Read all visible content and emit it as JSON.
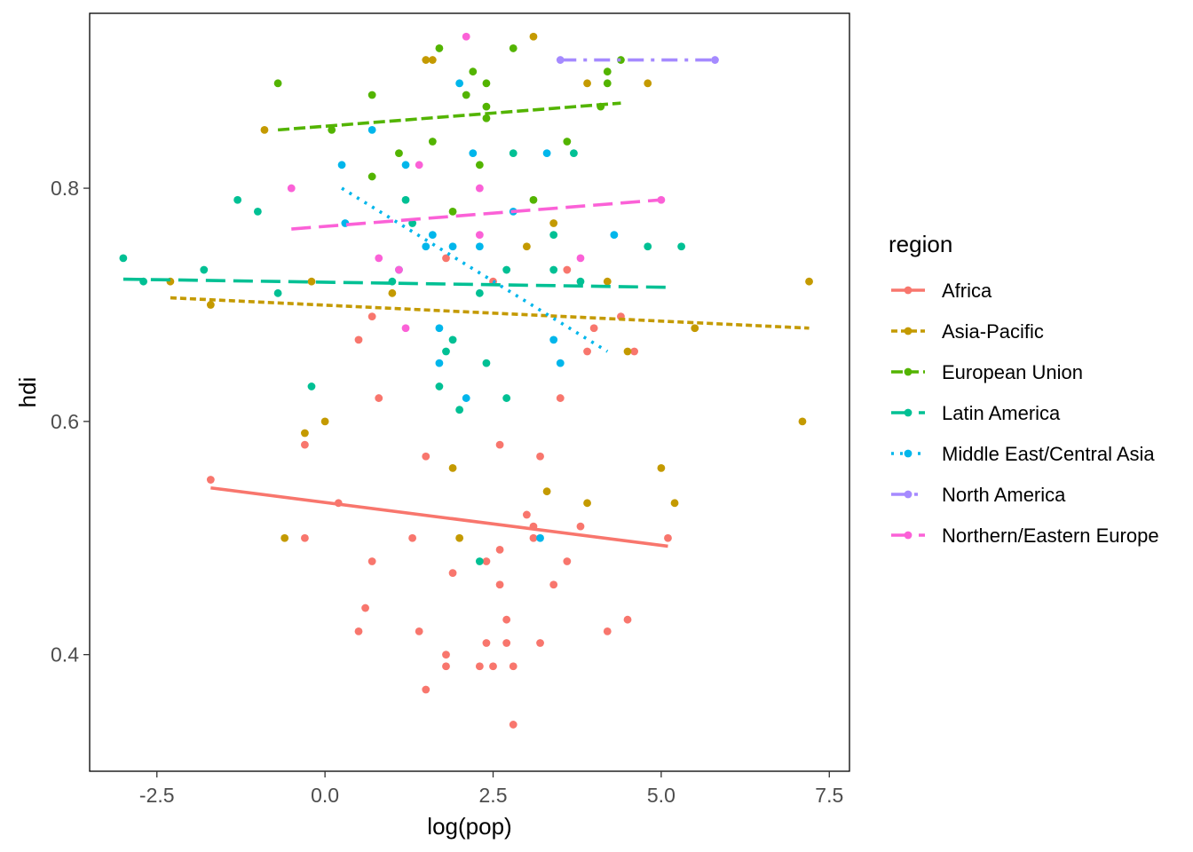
{
  "chart_data": {
    "type": "scatter",
    "xlabel": "log(pop)",
    "ylabel": "hdi",
    "xlim": [
      -3.5,
      7.8
    ],
    "ylim": [
      0.3,
      0.95
    ],
    "x_ticks": [
      -2.5,
      0.0,
      2.5,
      5.0,
      7.5
    ],
    "x_tick_labels": [
      "-2.5",
      "0.0",
      "2.5",
      "5.0",
      "7.5"
    ],
    "y_ticks": [
      0.4,
      0.6,
      0.8
    ],
    "y_tick_labels": [
      "0.4",
      "0.6",
      "0.8"
    ],
    "legend": {
      "title": "region",
      "position": "right"
    },
    "grid": false,
    "series": [
      {
        "name": "Africa",
        "color": "#F8766D",
        "dash": "solid",
        "trend": {
          "x": [
            -1.7,
            5.1
          ],
          "y": [
            0.543,
            0.493
          ]
        },
        "points": [
          [
            -1.7,
            0.55
          ],
          [
            0.2,
            0.53
          ],
          [
            -0.3,
            0.58
          ],
          [
            -0.3,
            0.5
          ],
          [
            0.5,
            0.67
          ],
          [
            0.7,
            0.69
          ],
          [
            0.8,
            0.62
          ],
          [
            0.5,
            0.42
          ],
          [
            0.6,
            0.44
          ],
          [
            0.7,
            0.48
          ],
          [
            1.3,
            0.5
          ],
          [
            1.4,
            0.42
          ],
          [
            1.5,
            0.57
          ],
          [
            1.5,
            0.37
          ],
          [
            1.8,
            0.74
          ],
          [
            1.8,
            0.4
          ],
          [
            1.8,
            0.39
          ],
          [
            1.9,
            0.47
          ],
          [
            2.3,
            0.39
          ],
          [
            2.4,
            0.48
          ],
          [
            2.4,
            0.41
          ],
          [
            2.5,
            0.72
          ],
          [
            2.5,
            0.39
          ],
          [
            2.6,
            0.58
          ],
          [
            2.6,
            0.49
          ],
          [
            2.6,
            0.46
          ],
          [
            2.7,
            0.41
          ],
          [
            2.7,
            0.43
          ],
          [
            2.8,
            0.39
          ],
          [
            2.8,
            0.34
          ],
          [
            3.0,
            0.52
          ],
          [
            3.1,
            0.51
          ],
          [
            3.1,
            0.5
          ],
          [
            3.2,
            0.57
          ],
          [
            3.2,
            0.41
          ],
          [
            3.4,
            0.46
          ],
          [
            3.5,
            0.62
          ],
          [
            3.6,
            0.48
          ],
          [
            3.6,
            0.73
          ],
          [
            3.8,
            0.51
          ],
          [
            3.9,
            0.66
          ],
          [
            4.0,
            0.68
          ],
          [
            4.2,
            0.42
          ],
          [
            4.4,
            0.69
          ],
          [
            4.5,
            0.43
          ],
          [
            4.6,
            0.66
          ],
          [
            5.1,
            0.5
          ]
        ]
      },
      {
        "name": "Asia-Pacific",
        "color": "#C49A00",
        "dash": "short",
        "trend": {
          "x": [
            -2.3,
            7.2
          ],
          "y": [
            0.706,
            0.68
          ]
        },
        "points": [
          [
            -2.3,
            0.72
          ],
          [
            -1.7,
            0.7
          ],
          [
            -0.9,
            0.85
          ],
          [
            -0.6,
            0.5
          ],
          [
            -0.3,
            0.59
          ],
          [
            -0.2,
            0.72
          ],
          [
            0.0,
            0.6
          ],
          [
            1.0,
            0.71
          ],
          [
            1.5,
            0.91
          ],
          [
            1.6,
            0.91
          ],
          [
            1.9,
            0.56
          ],
          [
            2.0,
            0.5
          ],
          [
            3.0,
            0.75
          ],
          [
            3.1,
            0.93
          ],
          [
            3.3,
            0.54
          ],
          [
            3.4,
            0.77
          ],
          [
            3.9,
            0.89
          ],
          [
            3.9,
            0.53
          ],
          [
            4.2,
            0.72
          ],
          [
            4.5,
            0.66
          ],
          [
            4.8,
            0.89
          ],
          [
            5.0,
            0.56
          ],
          [
            5.2,
            0.53
          ],
          [
            5.5,
            0.68
          ],
          [
            7.1,
            0.6
          ],
          [
            7.2,
            0.72
          ]
        ]
      },
      {
        "name": "European Union",
        "color": "#53B400",
        "dash": "medium",
        "trend": {
          "x": [
            -0.7,
            4.4
          ],
          "y": [
            0.85,
            0.873
          ]
        },
        "points": [
          [
            -0.7,
            0.89
          ],
          [
            0.1,
            0.85
          ],
          [
            0.7,
            0.88
          ],
          [
            0.7,
            0.81
          ],
          [
            1.1,
            0.83
          ],
          [
            1.6,
            0.84
          ],
          [
            1.7,
            0.92
          ],
          [
            1.9,
            0.78
          ],
          [
            2.1,
            0.88
          ],
          [
            2.2,
            0.9
          ],
          [
            2.3,
            0.82
          ],
          [
            2.4,
            0.87
          ],
          [
            2.4,
            0.86
          ],
          [
            2.4,
            0.89
          ],
          [
            2.8,
            0.92
          ],
          [
            3.1,
            0.79
          ],
          [
            3.6,
            0.84
          ],
          [
            4.1,
            0.87
          ],
          [
            4.2,
            0.89
          ],
          [
            4.2,
            0.9
          ],
          [
            4.4,
            0.91
          ]
        ]
      },
      {
        "name": "Latin America",
        "color": "#00C094",
        "dash": "long",
        "trend": {
          "x": [
            -3.0,
            5.1
          ],
          "y": [
            0.722,
            0.715
          ]
        },
        "points": [
          [
            -3.0,
            0.74
          ],
          [
            -2.7,
            0.72
          ],
          [
            -1.8,
            0.73
          ],
          [
            -1.3,
            0.79
          ],
          [
            -1.0,
            0.78
          ],
          [
            -0.7,
            0.71
          ],
          [
            -0.2,
            0.63
          ],
          [
            1.0,
            0.72
          ],
          [
            1.2,
            0.79
          ],
          [
            1.3,
            0.77
          ],
          [
            1.7,
            0.63
          ],
          [
            1.8,
            0.66
          ],
          [
            1.9,
            0.67
          ],
          [
            2.0,
            0.61
          ],
          [
            2.3,
            0.71
          ],
          [
            2.4,
            0.65
          ],
          [
            2.3,
            0.48
          ],
          [
            2.7,
            0.73
          ],
          [
            2.7,
            0.62
          ],
          [
            2.8,
            0.83
          ],
          [
            3.4,
            0.73
          ],
          [
            3.4,
            0.76
          ],
          [
            3.7,
            0.83
          ],
          [
            3.8,
            0.72
          ],
          [
            4.8,
            0.75
          ],
          [
            5.3,
            0.75
          ]
        ]
      },
      {
        "name": "Middle East/Central Asia",
        "color": "#00B6EB",
        "dash": "dotted",
        "trend": {
          "x": [
            0.25,
            4.2
          ],
          "y": [
            0.8,
            0.66
          ]
        },
        "points": [
          [
            0.25,
            0.82
          ],
          [
            0.3,
            0.77
          ],
          [
            0.7,
            0.85
          ],
          [
            1.1,
            0.73
          ],
          [
            1.2,
            0.82
          ],
          [
            1.5,
            0.75
          ],
          [
            1.6,
            0.76
          ],
          [
            1.7,
            0.68
          ],
          [
            1.7,
            0.65
          ],
          [
            1.9,
            0.75
          ],
          [
            2.0,
            0.89
          ],
          [
            2.1,
            0.62
          ],
          [
            2.2,
            0.83
          ],
          [
            2.3,
            0.75
          ],
          [
            2.8,
            0.78
          ],
          [
            3.2,
            0.5
          ],
          [
            3.3,
            0.83
          ],
          [
            3.4,
            0.67
          ],
          [
            3.5,
            0.65
          ],
          [
            4.3,
            0.76
          ]
        ]
      },
      {
        "name": "North America",
        "color": "#A58AFF",
        "dash": "dashdot",
        "trend": {
          "x": [
            3.5,
            5.8
          ],
          "y": [
            0.91,
            0.91
          ]
        },
        "points": [
          [
            3.5,
            0.91
          ],
          [
            5.8,
            0.91
          ]
        ]
      },
      {
        "name": "Northern/Eastern Europe",
        "color": "#FB61D7",
        "dash": "long",
        "trend": {
          "x": [
            -0.5,
            5.0
          ],
          "y": [
            0.765,
            0.79
          ]
        },
        "points": [
          [
            -0.5,
            0.8
          ],
          [
            0.8,
            0.74
          ],
          [
            1.1,
            0.73
          ],
          [
            1.2,
            0.68
          ],
          [
            1.4,
            0.82
          ],
          [
            2.1,
            0.93
          ],
          [
            2.3,
            0.8
          ],
          [
            2.3,
            0.76
          ],
          [
            3.8,
            0.74
          ],
          [
            5.0,
            0.79
          ]
        ]
      }
    ]
  }
}
